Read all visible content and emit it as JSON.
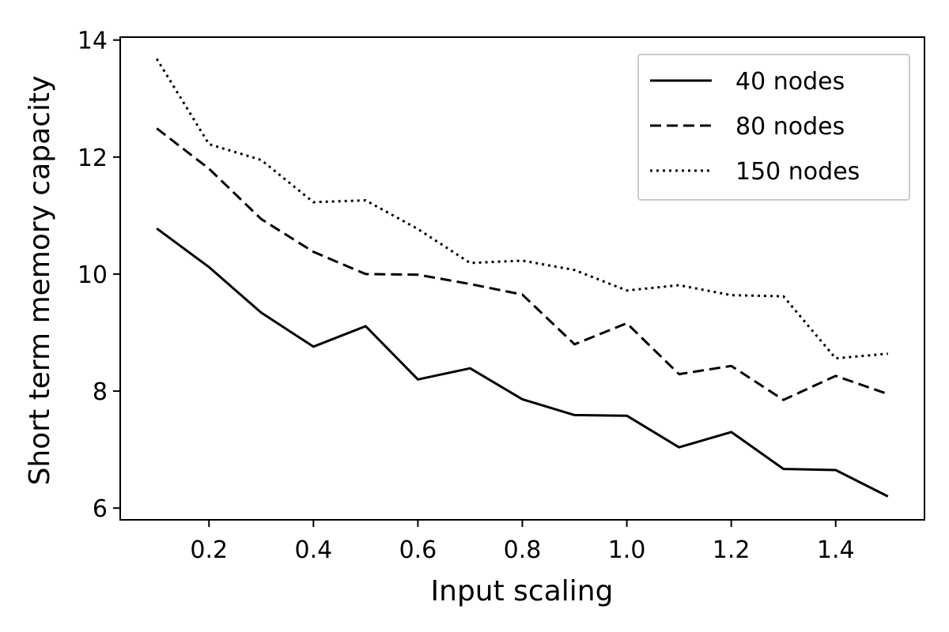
{
  "chart_data": {
    "type": "line",
    "title": "",
    "xlabel": "Input scaling",
    "ylabel": "Short term memory capacity",
    "xlim": [
      0.03,
      1.57
    ],
    "ylim": [
      5.8,
      14.05
    ],
    "x_ticks": [
      0.2,
      0.4,
      0.6,
      0.8,
      1.0,
      1.2,
      1.4
    ],
    "x_tick_labels": [
      "0.2",
      "0.4",
      "0.6",
      "0.8",
      "1.0",
      "1.2",
      "1.4"
    ],
    "y_ticks": [
      6,
      8,
      10,
      12,
      14
    ],
    "y_tick_labels": [
      "6",
      "8",
      "10",
      "12",
      "14"
    ],
    "grid": false,
    "legend_position": "top-right",
    "x": [
      0.1,
      0.2,
      0.3,
      0.4,
      0.5,
      0.6,
      0.7,
      0.8,
      0.9,
      1.0,
      1.1,
      1.2,
      1.3,
      1.4,
      1.5
    ],
    "series": [
      {
        "name": "40 nodes",
        "style": "solid",
        "color": "#000000",
        "values": [
          10.78,
          10.12,
          9.34,
          8.76,
          9.11,
          8.2,
          8.39,
          7.86,
          7.59,
          7.58,
          7.04,
          7.3,
          6.67,
          6.65,
          6.2
        ]
      },
      {
        "name": "80 nodes",
        "style": "dashed",
        "color": "#000000",
        "values": [
          12.49,
          11.8,
          10.94,
          10.38,
          10.0,
          9.99,
          9.83,
          9.65,
          8.8,
          9.16,
          8.29,
          8.43,
          7.85,
          8.26,
          7.95
        ]
      },
      {
        "name": "150 nodes",
        "style": "dotted",
        "color": "#000000",
        "values": [
          13.68,
          12.22,
          11.95,
          11.23,
          11.26,
          10.77,
          10.19,
          10.23,
          10.07,
          9.72,
          9.81,
          9.64,
          9.62,
          8.56,
          8.64
        ]
      }
    ]
  }
}
